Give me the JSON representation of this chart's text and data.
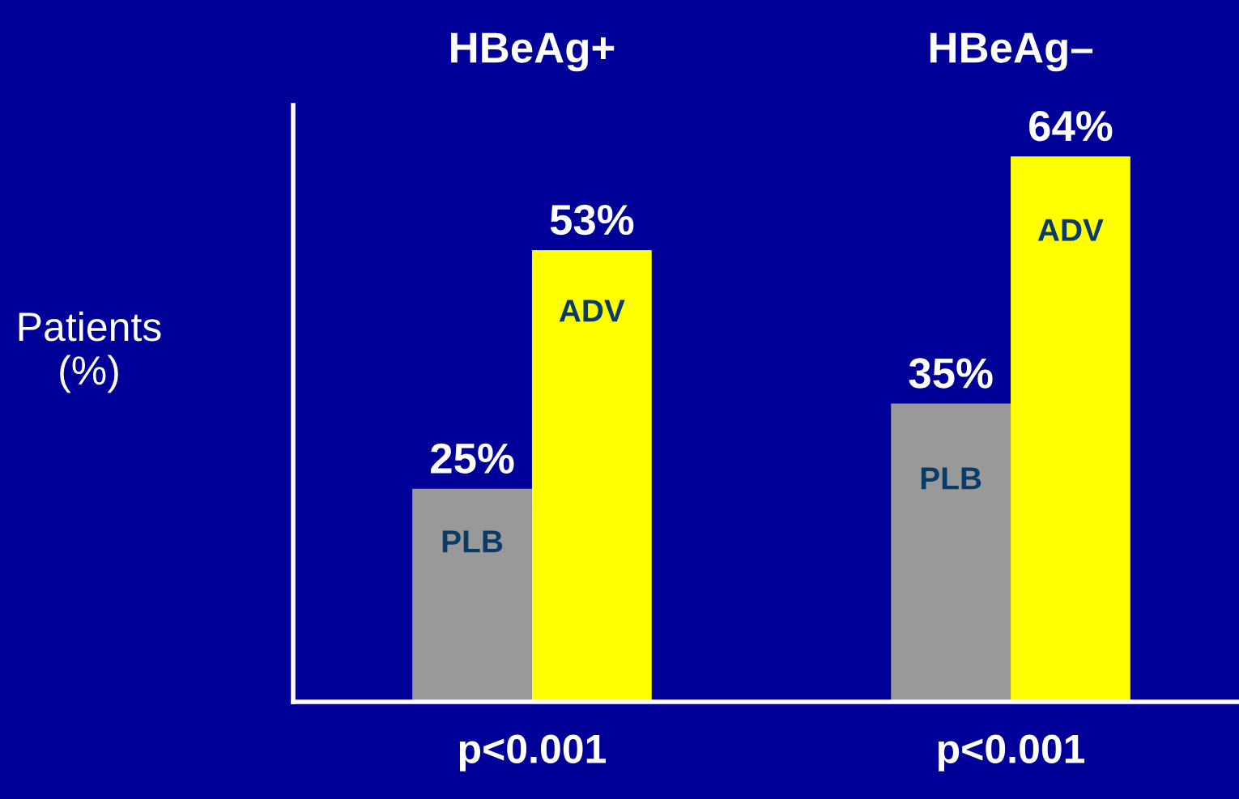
{
  "chart_data": {
    "type": "bar",
    "categories": [
      "HBeAg+",
      "HBeAg–"
    ],
    "series": [
      {
        "name": "PLB",
        "color": "#999999",
        "values": [
          25,
          35
        ],
        "value_labels": [
          "25%",
          "35%"
        ]
      },
      {
        "name": "ADV",
        "color": "#ffff00",
        "values": [
          53,
          64
        ],
        "value_labels": [
          "53%",
          "64%"
        ]
      }
    ],
    "ylabel": "Patients\n(%)",
    "ylim": [
      0,
      70
    ],
    "annotations": [
      "p<0.001",
      "p<0.001"
    ],
    "tick_labels": "x",
    "grid": false,
    "legend": false
  }
}
